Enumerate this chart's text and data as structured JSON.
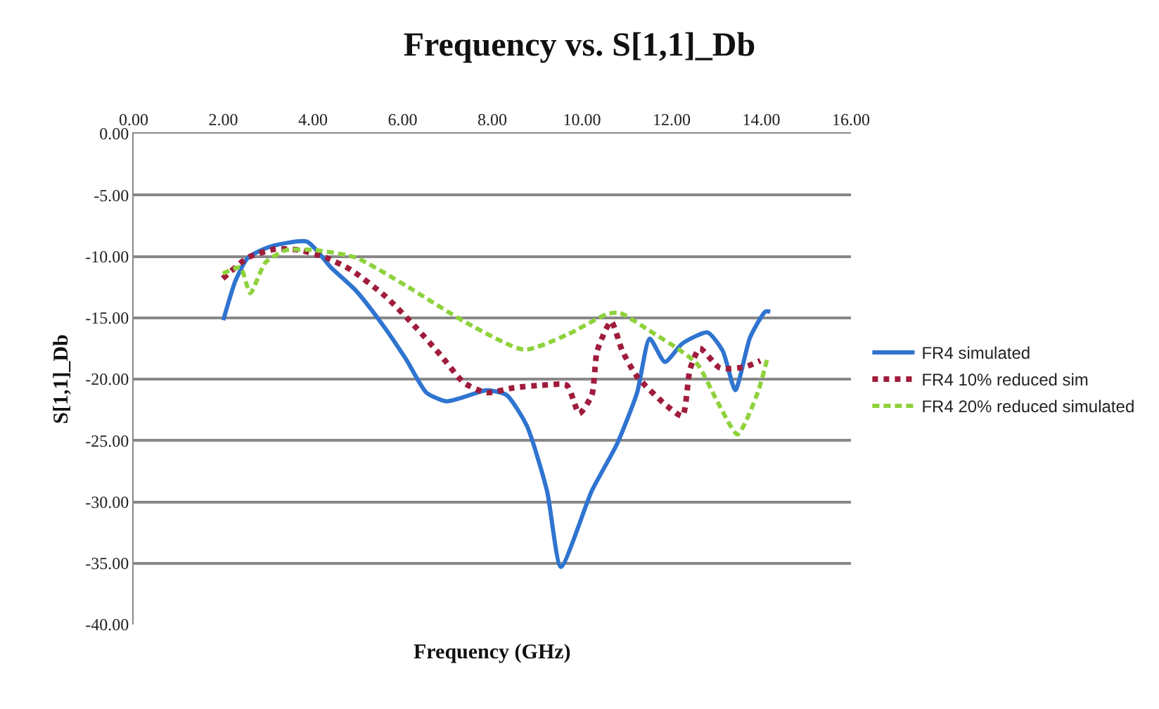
{
  "chart_data": {
    "type": "line",
    "title": "Frequency vs. S[1,1]_Db",
    "xlabel": "Frequency (GHz)",
    "ylabel": "S[1,1]_Db",
    "xlim": [
      0,
      16
    ],
    "xticks": [
      {
        "value": 0,
        "label": "0.00"
      },
      {
        "value": 2,
        "label": "2.00"
      },
      {
        "value": 4,
        "label": "4.00"
      },
      {
        "value": 6,
        "label": "6.00"
      },
      {
        "value": 8,
        "label": "8.00"
      },
      {
        "value": 10,
        "label": "10.00"
      },
      {
        "value": 12,
        "label": "12.00"
      },
      {
        "value": 14,
        "label": "14.00"
      },
      {
        "value": 16,
        "label": "16.00"
      }
    ],
    "ylim": [
      -40,
      0
    ],
    "yticks": [
      {
        "value": 0,
        "label": "0.00"
      },
      {
        "value": -5,
        "label": "-5.00"
      },
      {
        "value": -10,
        "label": "-10.00"
      },
      {
        "value": -15,
        "label": "-15.00"
      },
      {
        "value": -20,
        "label": "-20.00"
      },
      {
        "value": -25,
        "label": "-25.00"
      },
      {
        "value": -30,
        "label": "-30.00"
      },
      {
        "value": -35,
        "label": "-35.00"
      },
      {
        "value": -40,
        "label": "-40.00"
      }
    ],
    "grid": "y",
    "legend": "right",
    "marker": "none",
    "series": [
      {
        "name": "FR4 simulated",
        "color": "#2f74d0",
        "line_style": "solid",
        "x": [
          2.0,
          2.27,
          2.55,
          3.05,
          3.87,
          4.4,
          4.96,
          5.52,
          6.08,
          6.53,
          6.97,
          7.42,
          7.87,
          8.32,
          8.77,
          9.22,
          9.53,
          10.22,
          10.78,
          11.23,
          11.51,
          11.85,
          12.24,
          12.8,
          13.14,
          13.42,
          13.75,
          14.09,
          14.2
        ],
        "values": [
          -15.2,
          -12.0,
          -10.1,
          -9.2,
          -8.8,
          -10.9,
          -12.8,
          -15.4,
          -18.4,
          -21.1,
          -21.8,
          -21.4,
          -20.9,
          -21.3,
          -23.8,
          -29.1,
          -35.3,
          -29.1,
          -25.3,
          -21.1,
          -16.7,
          -18.6,
          -17.1,
          -16.2,
          -17.7,
          -20.9,
          -16.6,
          -14.5,
          -14.5
        ]
      },
      {
        "name": "FR4 10% reduced sim",
        "color": "#a01c3c",
        "line_style": "dotted",
        "x": [
          1.99,
          2.55,
          3.17,
          3.72,
          4.29,
          4.85,
          5.63,
          6.3,
          6.86,
          7.37,
          7.87,
          8.49,
          9.1,
          9.66,
          9.94,
          10.22,
          10.34,
          10.65,
          10.9,
          11.23,
          11.9,
          12.24,
          12.41,
          12.63,
          13.08,
          13.64,
          13.98
        ],
        "values": [
          -11.8,
          -10.1,
          -9.4,
          -9.5,
          -10.1,
          -11.1,
          -13.3,
          -15.8,
          -18.1,
          -20.3,
          -21.1,
          -20.7,
          -20.5,
          -20.5,
          -22.8,
          -21.3,
          -17.7,
          -15.3,
          -17.7,
          -19.8,
          -22.2,
          -23.0,
          -19.2,
          -17.5,
          -19.1,
          -19.0,
          -18.5
        ]
      },
      {
        "name": "FR4 20% reduced simulated",
        "color": "#8ed23c",
        "line_style": "dashed",
        "x": [
          1.99,
          2.38,
          2.6,
          2.94,
          3.39,
          4.06,
          4.96,
          6.08,
          7.42,
          8.71,
          9.66,
          10.56,
          10.84,
          11.57,
          12.13,
          12.58,
          13.03,
          13.47,
          13.92,
          14.15
        ],
        "values": [
          -11.4,
          -10.9,
          -13.0,
          -10.5,
          -9.5,
          -9.5,
          -10.1,
          -12.4,
          -15.4,
          -17.6,
          -16.4,
          -14.7,
          -14.6,
          -16.2,
          -17.5,
          -18.8,
          -21.9,
          -24.5,
          -21.1,
          -18.1
        ]
      }
    ]
  }
}
